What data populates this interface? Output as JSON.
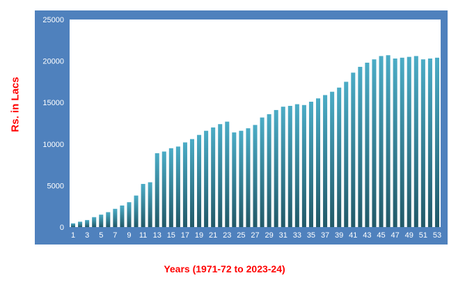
{
  "chart_data": {
    "type": "bar",
    "title": "",
    "ylabel": "Rs. in Lacs",
    "xlabel": "Years (1971-72 to 2023-24)",
    "ylim": [
      0,
      25000
    ],
    "yticks": [
      0,
      5000,
      10000,
      15000,
      20000,
      25000
    ],
    "xtick_labels": [
      "1",
      "3",
      "5",
      "7",
      "9",
      "11",
      "13",
      "15",
      "17",
      "19",
      "21",
      "23",
      "25",
      "27",
      "29",
      "31",
      "33",
      "35",
      "37",
      "39",
      "41",
      "43",
      "45",
      "47",
      "49",
      "51",
      "53"
    ],
    "categories": [
      "1",
      "2",
      "3",
      "4",
      "5",
      "6",
      "7",
      "8",
      "9",
      "10",
      "11",
      "12",
      "13",
      "14",
      "15",
      "16",
      "17",
      "18",
      "19",
      "20",
      "21",
      "22",
      "23",
      "24",
      "25",
      "26",
      "27",
      "28",
      "29",
      "30",
      "31",
      "32",
      "33",
      "34",
      "35",
      "36",
      "37",
      "38",
      "39",
      "40",
      "41",
      "42",
      "43",
      "44",
      "45",
      "46",
      "47",
      "48",
      "49",
      "50",
      "51",
      "52",
      "53"
    ],
    "values": [
      450,
      650,
      850,
      1200,
      1500,
      1800,
      2200,
      2600,
      3000,
      3800,
      5200,
      5400,
      8900,
      9100,
      9500,
      9700,
      10200,
      10600,
      11100,
      11600,
      12000,
      12400,
      12700,
      11400,
      11600,
      11900,
      12300,
      13200,
      13600,
      14100,
      14500,
      14600,
      14800,
      14700,
      15100,
      15500,
      15900,
      16300,
      16800,
      17500,
      18600,
      19300,
      19800,
      20200,
      20600,
      20700,
      20300,
      20400,
      20500,
      20600,
      20200,
      20300,
      20400
    ],
    "grid": false,
    "legend": "none",
    "colors": {
      "frame": "#4f81bd",
      "plot": "#ffffff",
      "bar": "#31859c",
      "bar_light": "#4bacc6",
      "axis_text": "#ffffff",
      "label": "#ff0000"
    }
  }
}
